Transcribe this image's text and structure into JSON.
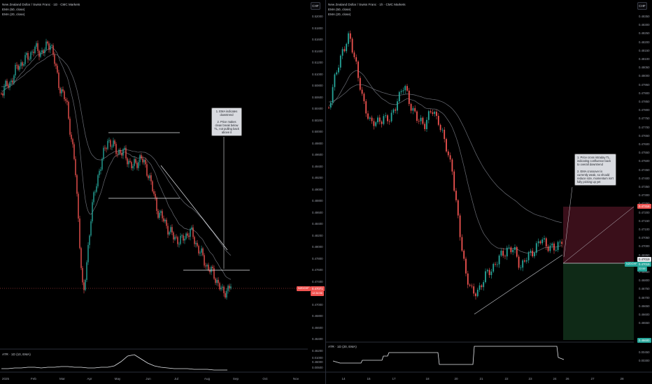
{
  "left_chart": {
    "title_line": "New Zealand Dollar / Swiss Franc · 1D · CMC Markets",
    "ema1": "EMA (50, close)",
    "ema2": "EMA (20, close)",
    "currency": "CHF",
    "y_ticks": [
      "0.52000",
      "0.51800",
      "0.51600",
      "0.51400",
      "0.51200",
      "0.51000",
      "0.50800",
      "0.50600",
      "0.50400",
      "0.50200",
      "0.50000",
      "0.49800",
      "0.49600",
      "0.49400",
      "0.49200",
      "0.49000",
      "0.48800",
      "0.48600",
      "0.48400",
      "0.48200",
      "0.48000",
      "0.47800",
      "0.47600",
      "0.47400",
      "0.47200",
      "0.47000",
      "0.46800",
      "0.46600",
      "0.46400",
      "0.46200",
      "0.46000"
    ],
    "x_ticks": [
      "2025",
      "Feb",
      "Mar",
      "Apr",
      "May",
      "Jun",
      "Jul",
      "Aug",
      "Sep",
      "Oct",
      "Nov"
    ],
    "price_tag_symbol": "NZDCHF",
    "price_tag_value": "0.47071",
    "price_tag_time": "12:34:56",
    "note_lines": [
      "1. EMA indicates downtrend",
      "2. Price makes clean break below TL, not pulling back above it"
    ],
    "atr_label": "ATR · 1D (10, EMA)",
    "atr_ticks": [
      "0.01000",
      "0.00500"
    ],
    "colors": {
      "up": "#26a69a",
      "down": "#ef5350",
      "ema": "#6b6e76"
    }
  },
  "right_chart": {
    "title_line": "New Zealand Dollar / Swiss Franc · 1h · CMC Markets",
    "ema1": "EMA (50, close)",
    "ema2": "EMA (20, close)",
    "currency": "CHF",
    "y_ticks": [
      "0.48350",
      "0.48300",
      "0.48250",
      "0.48200",
      "0.48150",
      "0.48100",
      "0.48050",
      "0.48000",
      "0.47950",
      "0.47900",
      "0.47850",
      "0.47800",
      "0.47750",
      "0.47700",
      "0.47650",
      "0.47600",
      "0.47550",
      "0.47500",
      "0.47450",
      "0.47400",
      "0.47350",
      "0.47300",
      "0.47250",
      "0.47200",
      "0.47150",
      "0.47100",
      "0.47050",
      "0.47000",
      "0.46950",
      "0.46900",
      "0.46850",
      "0.46800",
      "0.46750",
      "0.46700",
      "0.46650",
      "0.46600",
      "0.46550"
    ],
    "x_ticks": [
      "14",
      "15",
      "17",
      "18",
      "20",
      "21",
      "22",
      "23",
      "24",
      "26",
      "27",
      "28"
    ],
    "stop_tag": "0.47318",
    "price_tag_symbol": "NZDCHF",
    "price_tag_value": "0.47019",
    "price_tag_time": "22:59",
    "entry_tag": "0.47019",
    "target_tag": "0.46600",
    "note_lines": [
      "1. Price cross intraday TL, indicating confluence back to overall downtrend",
      "2. EMA crossover is currently weak, so should reduce size, momentum isn't fully picking up yet"
    ],
    "atr_label": "ATR · 1D (20, EMA)",
    "atr_ticks": [
      "0.00450",
      "0.00300"
    ],
    "colors": {
      "up": "#26a69a",
      "down": "#ef5350",
      "stop_zone": "#3a0f1a",
      "target_zone": "#0f2a17"
    }
  }
}
